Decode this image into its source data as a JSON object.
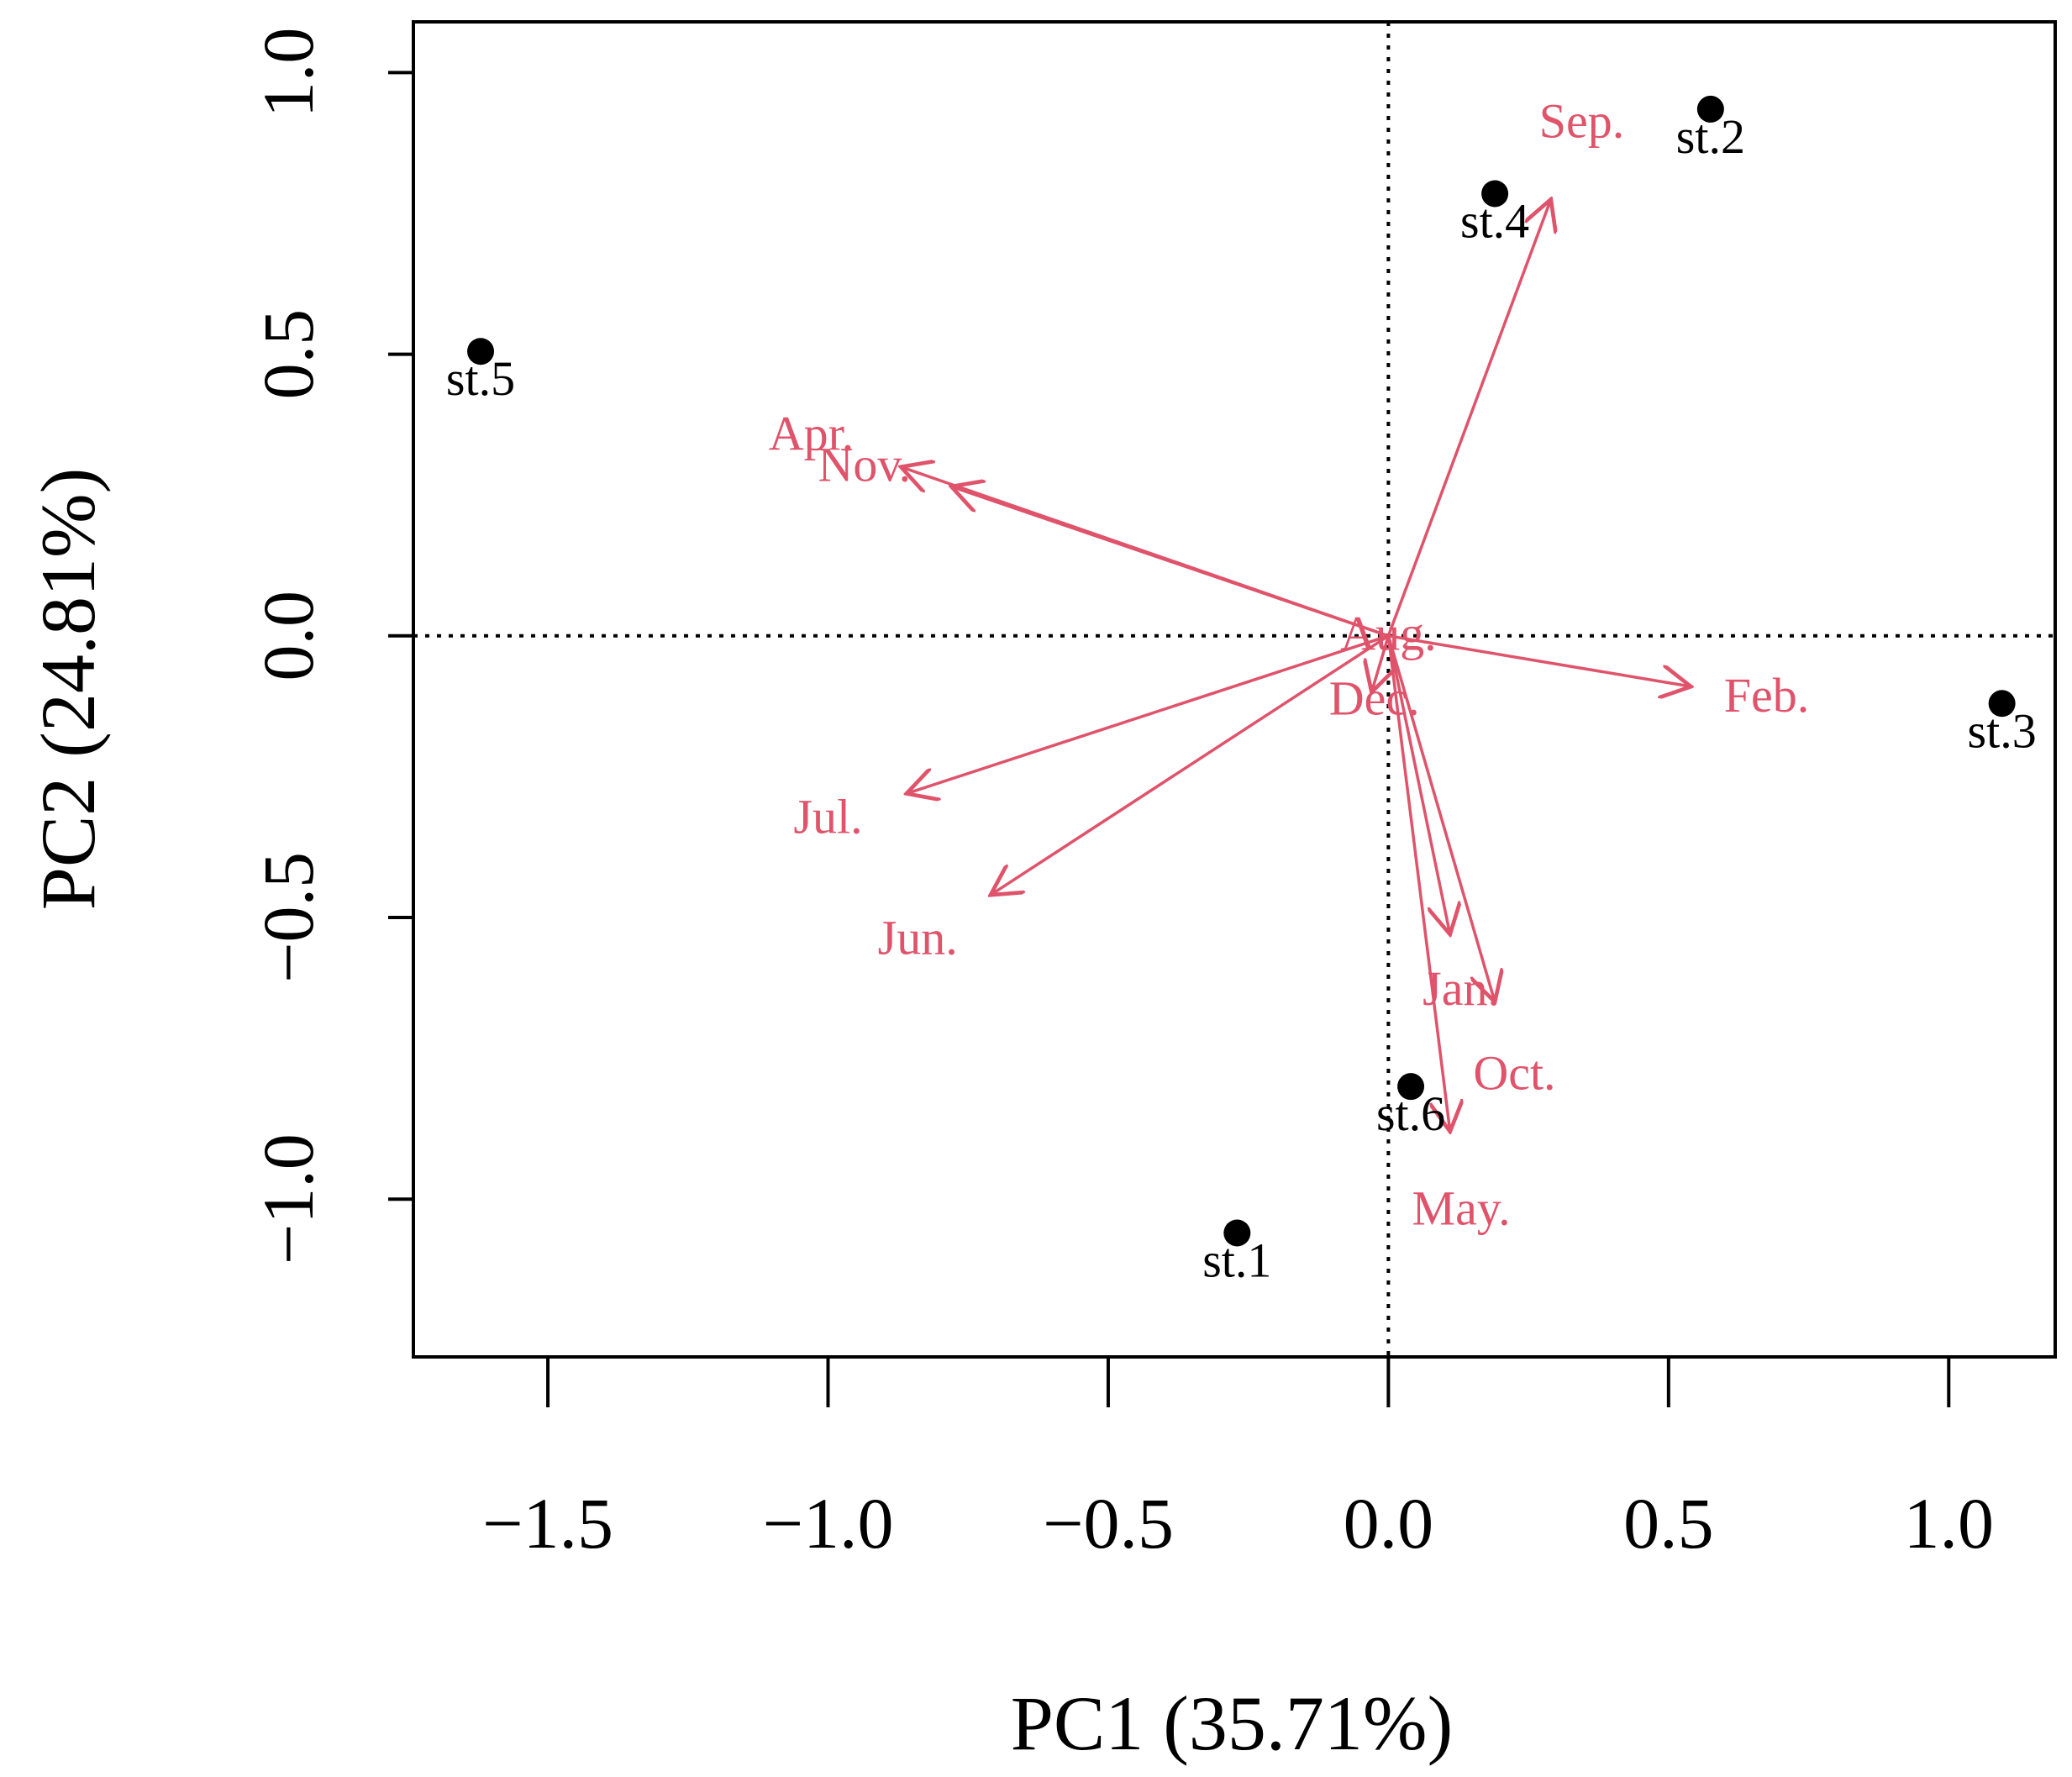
{
  "colors": {
    "arrow": "#df536b",
    "points": "#000000",
    "axes": "#000000"
  },
  "chart_data": {
    "type": "scatter",
    "subtype": "pca-biplot",
    "xlabel": "PC1 (35.71%)",
    "ylabel": "PC2 (24.81%)",
    "xlim": [
      -1.74,
      1.19
    ],
    "ylim": [
      -1.28,
      1.09
    ],
    "xticks": [
      -1.5,
      -1.0,
      -0.5,
      0.0,
      0.5,
      1.0
    ],
    "xtick_labels": [
      "−1.5",
      "−1.0",
      "−0.5",
      "0.0",
      "0.5",
      "1.0"
    ],
    "yticks": [
      -1.0,
      -0.5,
      0.0,
      0.5,
      1.0
    ],
    "ytick_labels": [
      "−1.0",
      "−0.5",
      "0.0",
      "0.5",
      "1.0"
    ],
    "reference_lines": {
      "x": 0,
      "y": 0,
      "style": "dotted"
    },
    "sites": [
      {
        "label": "st.1",
        "x": -0.27,
        "y": -1.06
      },
      {
        "label": "st.2",
        "x": 0.575,
        "y": 0.935
      },
      {
        "label": "st.3",
        "x": 1.095,
        "y": -0.12
      },
      {
        "label": "st.4",
        "x": 0.19,
        "y": 0.785
      },
      {
        "label": "st.5",
        "x": -1.62,
        "y": 0.505
      },
      {
        "label": "st.6",
        "x": 0.04,
        "y": -0.8
      }
    ],
    "variables": [
      {
        "label": "Sep.",
        "x": 0.29,
        "y": 0.775,
        "lx": 0.345,
        "ly": 0.905
      },
      {
        "label": "Apr.",
        "x": -0.78,
        "y": 0.265,
        "lx": -1.03,
        "ly": 0.35
      },
      {
        "label": "Nov.",
        "x": -0.87,
        "y": 0.3,
        "lx": -0.935,
        "ly": 0.295
      },
      {
        "label": "Aug.",
        "x": 0.0,
        "y": -0.02,
        "lx": 0.0,
        "ly": -0.005
      },
      {
        "label": "Dec.",
        "x": -0.03,
        "y": -0.1,
        "lx": -0.025,
        "ly": -0.12
      },
      {
        "label": "Feb.",
        "x": 0.54,
        "y": -0.09,
        "lx": 0.675,
        "ly": -0.115
      },
      {
        "label": "Jul.",
        "x": -0.86,
        "y": -0.28,
        "lx": -1.0,
        "ly": -0.33
      },
      {
        "label": "Jun.",
        "x": -0.71,
        "y": -0.46,
        "lx": -0.84,
        "ly": -0.545
      },
      {
        "label": "Jan.",
        "x": 0.11,
        "y": -0.53,
        "lx": 0.13,
        "ly": -0.635
      },
      {
        "label": "Oct.",
        "x": 0.19,
        "y": -0.65,
        "lx": 0.225,
        "ly": -0.785
      },
      {
        "label": "May.",
        "x": 0.11,
        "y": -0.88,
        "lx": 0.13,
        "ly": -1.025
      }
    ]
  }
}
